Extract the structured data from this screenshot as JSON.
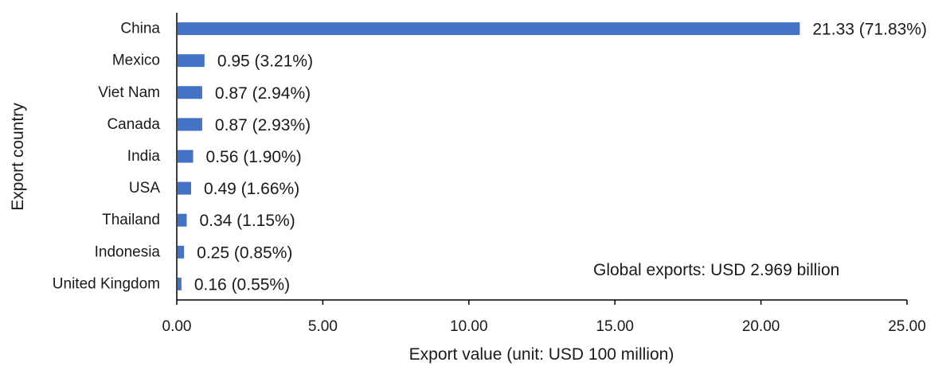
{
  "chart_data": {
    "type": "bar",
    "orientation": "horizontal",
    "categories": [
      "China",
      "Mexico",
      "Viet Nam",
      "Canada",
      "India",
      "USA",
      "Thailand",
      "Indonesia",
      "United Kingdom"
    ],
    "values": [
      21.33,
      0.95,
      0.87,
      0.87,
      0.56,
      0.49,
      0.34,
      0.25,
      0.16
    ],
    "data_labels": [
      "21.33 (71.83%)",
      "0.95 (3.21%)",
      "0.87 (2.94%)",
      "0.87 (2.93%)",
      "0.56 (1.90%)",
      "0.49 (1.66%)",
      "0.34 (1.15%)",
      "0.25 (0.85%)",
      "0.16 (0.55%)"
    ],
    "xlabel": "Export value (unit: USD 100 million)",
    "ylabel": "Export country",
    "xlim": [
      0,
      25
    ],
    "xticks": [
      "0.00",
      "5.00",
      "10.00",
      "15.00",
      "20.00",
      "25.00"
    ],
    "annotation": "Global exports: USD 2.969 billion",
    "grid": false,
    "legend": "none",
    "bar_color": "#4472C4"
  }
}
